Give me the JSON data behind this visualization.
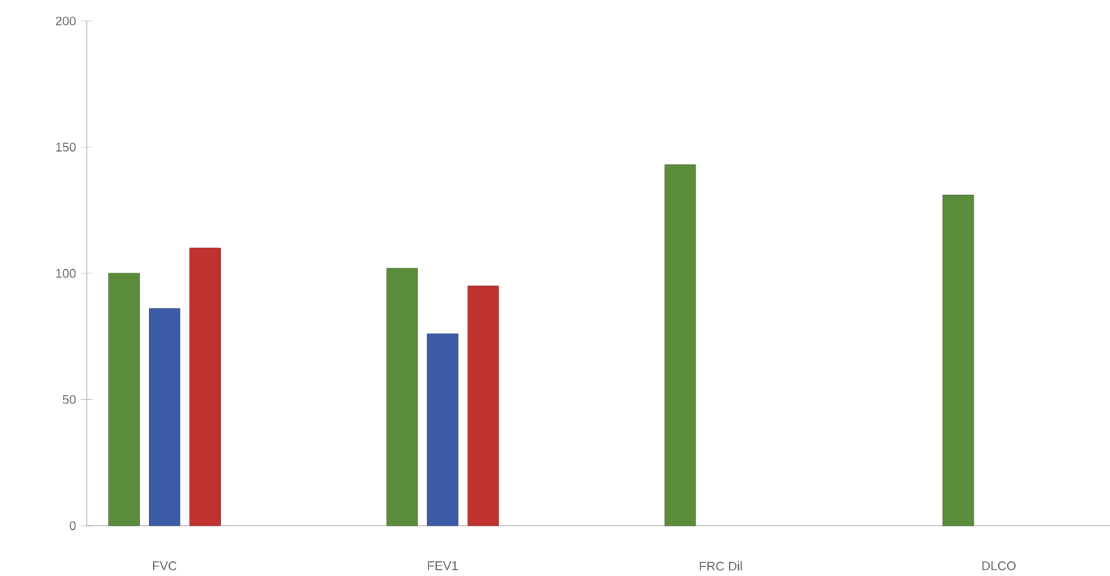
{
  "chart_data": {
    "type": "bar",
    "categories": [
      "FVC",
      "FEV1",
      "FRC Dil",
      "DLCO"
    ],
    "series": [
      {
        "color": "#5b8c3c",
        "values": [
          100,
          102,
          143,
          131
        ]
      },
      {
        "color": "#3b5ba6",
        "values": [
          86,
          76,
          null,
          null
        ]
      },
      {
        "color": "#c0322f",
        "values": [
          110,
          95,
          null,
          null
        ]
      }
    ],
    "ylim": [
      0,
      200
    ],
    "yticks": [
      0,
      50,
      100,
      150,
      200
    ]
  }
}
